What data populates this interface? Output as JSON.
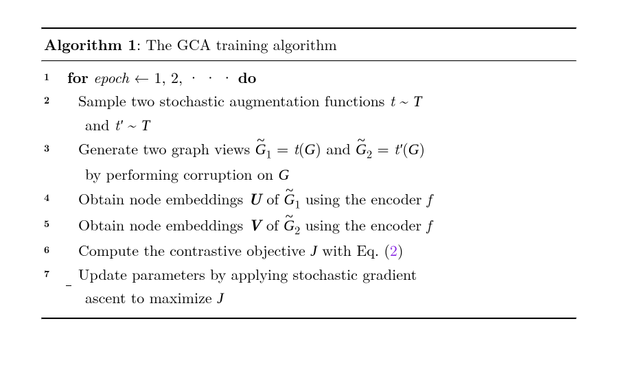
{
  "algorithm": {
    "number": "1",
    "title_prefix": "Algorithm ",
    "title_rest": ": The GCA training algorithm",
    "for_kw": "for",
    "do_kw": "do",
    "epoch_var": "epoch",
    "arrow": " ← ",
    "loop_range": "1, 2, · · · ",
    "lines": {
      "l2a": "Sample two stochastic augmentation functions ",
      "l2_t": "t",
      "l2_sim": " ~ ",
      "l2_T": "T",
      "l2b": "and ",
      "l2_tprime": "t′",
      "l3a": "Generate two graph views ",
      "l3_G1": "G",
      "l3_sub1": "1",
      "l3_eq": " = ",
      "l3_tG": "t",
      "l3_paren_open": "(",
      "l3_G": "G",
      "l3_paren_close": ")",
      "l3_and": " and ",
      "l3_G2": "G",
      "l3_sub2": "2",
      "l3_tprime": "t′",
      "l3b": "by performing corruption on ",
      "l4a": "Obtain node embeddings ",
      "l4_U": "U",
      "l4_of": " of ",
      "l4_using": " using the encoder ",
      "l4_f": "f",
      "l5_V": "V",
      "l6a": "Compute the contrastive objective ",
      "l6_J": "J",
      "l6b": " with Eq. (",
      "l6_ref": "2",
      "l6c": ")",
      "l7a": "Update parameters by applying stochastic gradient",
      "l7b": "ascent to maximize "
    },
    "line_numbers": [
      "1",
      "2",
      "3",
      "4",
      "5",
      "6",
      "7"
    ],
    "colors": {
      "text": "#000000",
      "link": "#8a2be2",
      "rule": "#000000",
      "background": "#ffffff"
    },
    "font": {
      "body_pt": 22,
      "lnum_pt": 14
    }
  }
}
